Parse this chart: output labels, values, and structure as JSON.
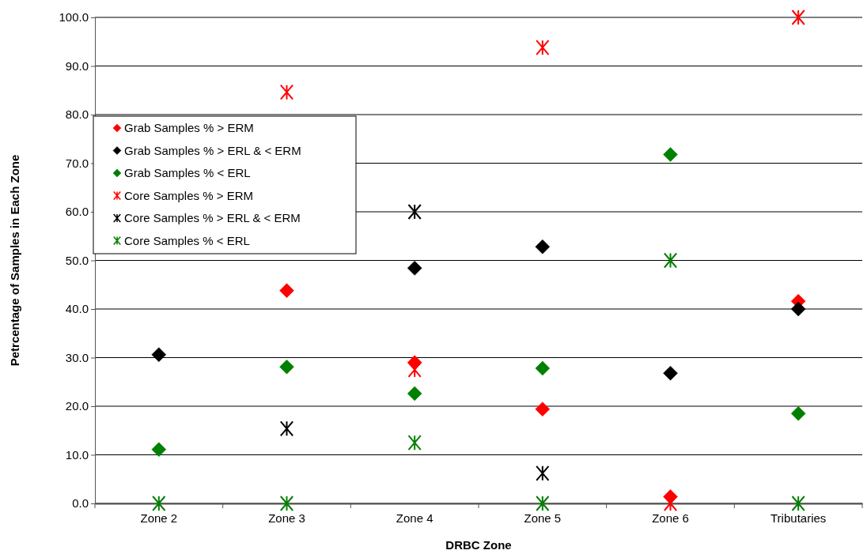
{
  "chart_data": {
    "type": "scatter",
    "xlabel": "DRBC Zone",
    "ylabel": "Petrcentage of Samples in Each Zone",
    "categories": [
      "Zone 2",
      "Zone 3",
      "Zone 4",
      "Zone 5",
      "Zone 6",
      "Tributaries"
    ],
    "ylim": [
      0,
      100
    ],
    "yticks": [
      {
        "value": 0,
        "label": "0.0"
      },
      {
        "value": 10,
        "label": "10.0"
      },
      {
        "value": 20,
        "label": "20.0"
      },
      {
        "value": 30,
        "label": "30.0"
      },
      {
        "value": 40,
        "label": "40.0"
      },
      {
        "value": 50,
        "label": "50.0"
      },
      {
        "value": 60,
        "label": "60.0"
      },
      {
        "value": 70,
        "label": "70.0"
      },
      {
        "value": 80,
        "label": "80.0"
      },
      {
        "value": 90,
        "label": "90.0"
      },
      {
        "value": 100,
        "label": "100.0"
      }
    ],
    "grid": "y",
    "legend": "top left",
    "series": [
      {
        "name": "Grab Samples % > ERM",
        "color": "#ff0000",
        "marker": "diamond",
        "values": [
          null,
          43.8,
          29.0,
          19.4,
          1.4,
          41.6
        ]
      },
      {
        "name": "Grab Samples % > ERL & < ERM",
        "color": "#000000",
        "marker": "diamond",
        "values": [
          30.6,
          null,
          48.4,
          52.8,
          26.8,
          40.0
        ]
      },
      {
        "name": "Grab Samples % < ERL",
        "color": "#008000",
        "marker": "diamond",
        "values": [
          11.1,
          28.1,
          22.6,
          27.8,
          71.8,
          18.5
        ]
      },
      {
        "name": "Core Samples % > ERM",
        "color": "#ff0000",
        "marker": "cross",
        "values": [
          null,
          84.6,
          27.5,
          93.8,
          0,
          100
        ]
      },
      {
        "name": "Core Samples % > ERL & < ERM",
        "color": "#000000",
        "marker": "cross",
        "values": [
          null,
          15.4,
          60.0,
          6.2,
          null,
          null
        ]
      },
      {
        "name": "Core Samples % < ERL",
        "color": "#008000",
        "marker": "cross",
        "values": [
          0,
          0,
          12.5,
          0,
          50.0,
          0
        ]
      }
    ]
  }
}
